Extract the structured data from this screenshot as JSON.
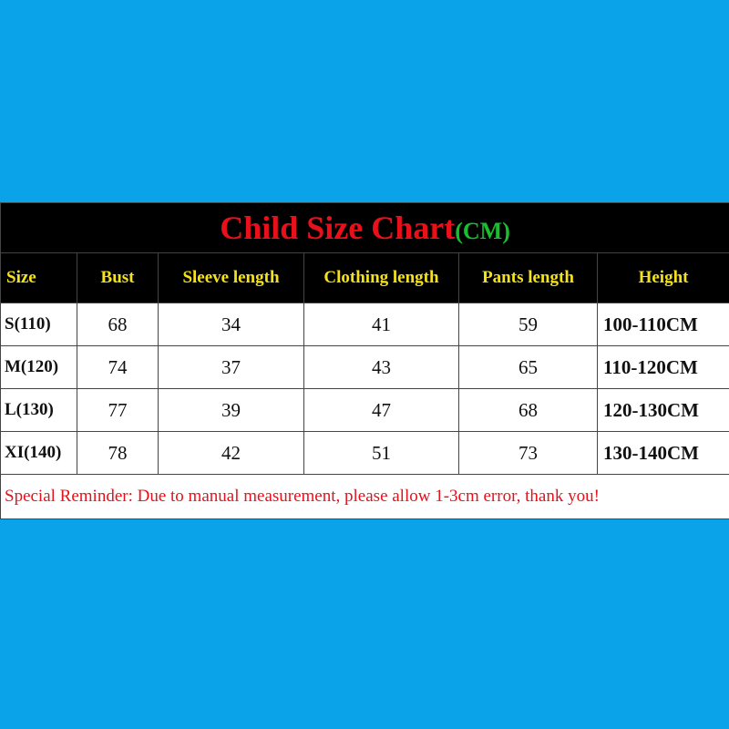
{
  "title": {
    "main": "Child Size Chart",
    "unit": "(CM)"
  },
  "header": [
    "Size",
    "Bust",
    "Sleeve length",
    "Clothing length",
    "Pants length",
    "Height"
  ],
  "rows": [
    [
      "S(110)",
      68,
      34,
      41,
      59,
      "100-110CM"
    ],
    [
      "M(120)",
      74,
      37,
      43,
      65,
      "110-120CM"
    ],
    [
      "L(130)",
      77,
      39,
      47,
      68,
      "120-130CM"
    ],
    [
      "XI(140)",
      78,
      42,
      51,
      73,
      "130-140CM"
    ]
  ],
  "reminder": "Special Reminder: Due to manual measurement, please allow 1-3cm error, thank you!"
}
